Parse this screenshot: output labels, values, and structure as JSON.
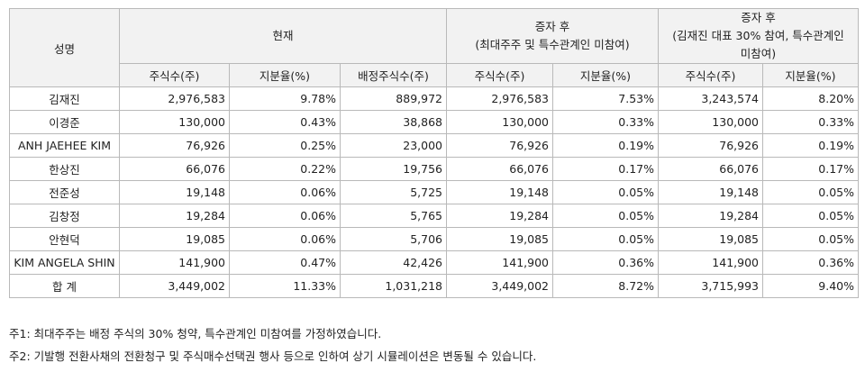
{
  "headers": {
    "name": "성명",
    "current": "현재",
    "after1": [
      "증자 후",
      "(최대주주 및 특수관계인 미참여)"
    ],
    "after2": [
      "증자 후",
      "(김재진 대표 30% 참여, 특수관계인",
      "미참여)"
    ],
    "sub": [
      "주식수(주)",
      "지분율(%)",
      "배정주식수(주)",
      "주식수(주)",
      "지분율(%)",
      "주식수(주)",
      "지분율(%)"
    ]
  },
  "rows": [
    {
      "name": "김재진",
      "v": [
        "2,976,583",
        "9.78%",
        "889,972",
        "2,976,583",
        "7.53%",
        "3,243,574",
        "8.20%"
      ]
    },
    {
      "name": "이경준",
      "v": [
        "130,000",
        "0.43%",
        "38,868",
        "130,000",
        "0.33%",
        "130,000",
        "0.33%"
      ]
    },
    {
      "name": "ANH JAEHEE KIM",
      "v": [
        "76,926",
        "0.25%",
        "23,000",
        "76,926",
        "0.19%",
        "76,926",
        "0.19%"
      ]
    },
    {
      "name": "한상진",
      "v": [
        "66,076",
        "0.22%",
        "19,756",
        "66,076",
        "0.17%",
        "66,076",
        "0.17%"
      ]
    },
    {
      "name": "전준성",
      "v": [
        "19,148",
        "0.06%",
        "5,725",
        "19,148",
        "0.05%",
        "19,148",
        "0.05%"
      ]
    },
    {
      "name": "김창정",
      "v": [
        "19,284",
        "0.06%",
        "5,765",
        "19,284",
        "0.05%",
        "19,284",
        "0.05%"
      ]
    },
    {
      "name": "안현덕",
      "v": [
        "19,085",
        "0.06%",
        "5,706",
        "19,085",
        "0.05%",
        "19,085",
        "0.05%"
      ]
    },
    {
      "name": "KIM ANGELA SHIN",
      "v": [
        "141,900",
        "0.47%",
        "42,426",
        "141,900",
        "0.36%",
        "141,900",
        "0.36%"
      ]
    },
    {
      "name": "합 계",
      "v": [
        "3,449,002",
        "11.33%",
        "1,031,218",
        "3,449,002",
        "8.72%",
        "3,715,993",
        "9.40%"
      ]
    }
  ],
  "notes": [
    "주1: 최대주주는 배정 주식의 30% 청약, 특수관계인 미참여를 가정하였습니다.",
    "주2: 기발행 전환사채의 전환청구 및 주식매수선택권 행사 등으로 인하여 상기 시뮬레이션은 변동될 수 있습니다."
  ]
}
